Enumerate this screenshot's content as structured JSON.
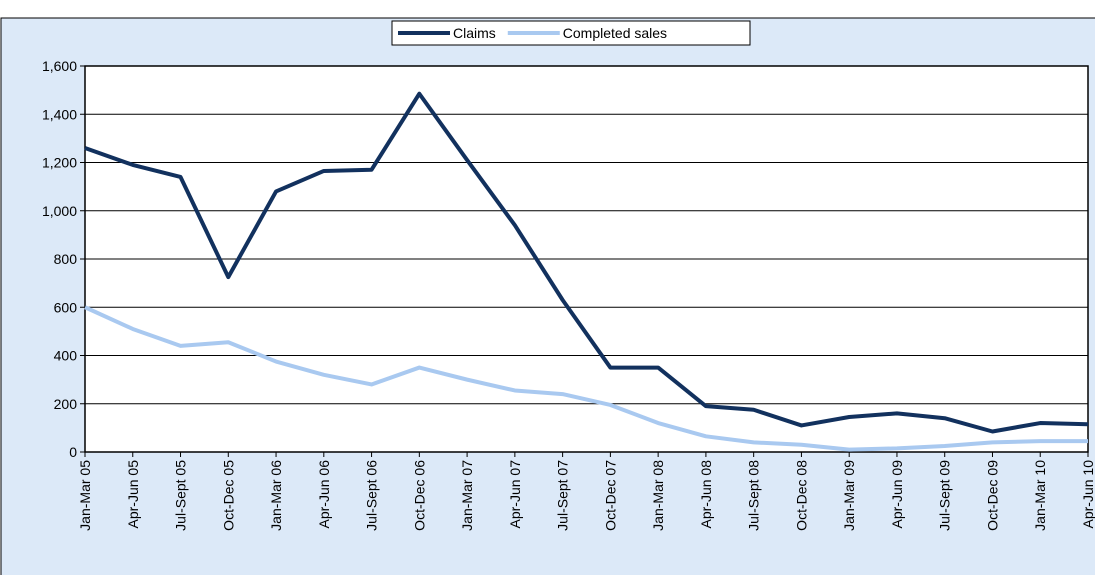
{
  "chart_data": {
    "type": "line",
    "categories": [
      "Jan-Mar 05",
      "Apr-Jun 05",
      "Jul-Sept 05",
      "Oct-Dec 05",
      "Jan-Mar 06",
      "Apr-Jun 06",
      "Jul-Sept 06",
      "Oct-Dec 06",
      "Jan-Mar 07",
      "Apr-Jun 07",
      "Jul-Sept 07",
      "Oct-Dec 07",
      "Jan-Mar 08",
      "Apr-Jun 08",
      "Jul-Sept 08",
      "Oct-Dec 08",
      "Jan-Mar 09",
      "Apr-Jun 09",
      "Jul-Sept 09",
      "Oct-Dec 09",
      "Jan-Mar 10",
      "Apr-Jun 10"
    ],
    "series": [
      {
        "name": "Claims",
        "color": "#12315e",
        "values": [
          1260,
          1190,
          1140,
          725,
          1080,
          1165,
          1170,
          1485,
          1210,
          940,
          630,
          350,
          350,
          190,
          175,
          110,
          145,
          160,
          140,
          85,
          120,
          115
        ]
      },
      {
        "name": "Completed sales",
        "color": "#a9c9f0",
        "values": [
          600,
          510,
          440,
          455,
          375,
          320,
          280,
          350,
          300,
          255,
          240,
          195,
          120,
          65,
          40,
          30,
          10,
          15,
          25,
          40,
          45,
          45
        ]
      }
    ],
    "ylim": [
      0,
      1600
    ],
    "yticks": [
      0,
      200,
      400,
      600,
      800,
      {
        "value": 1000,
        "label": "1,000"
      },
      {
        "value": 1200,
        "label": "1,200"
      },
      {
        "value": 1400,
        "label": "1,400"
      },
      {
        "value": 1600,
        "label": "1,600"
      }
    ],
    "grid": true,
    "legend": "top"
  }
}
